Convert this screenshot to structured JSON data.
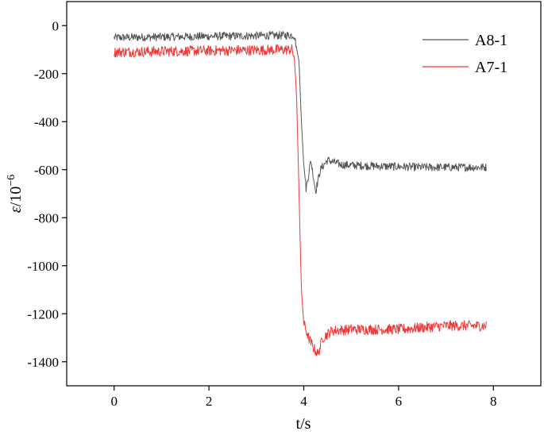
{
  "chart_data": {
    "type": "line",
    "xlabel": "t/s",
    "ylabel_main": "ε",
    "ylabel_sep": "/10",
    "ylabel_exp": "−6",
    "xlim": [
      -1.0,
      9.0
    ],
    "ylim": [
      -1500,
      100
    ],
    "xticks": [
      0,
      2,
      4,
      6,
      8
    ],
    "yticks": [
      0,
      -200,
      -400,
      -600,
      -800,
      -1000,
      -1200,
      -1400
    ],
    "grid": false,
    "legend_position": "top-right",
    "series": [
      {
        "name": "A8-1",
        "color": "#555555",
        "noise": 17,
        "points": [
          [
            0,
            -50
          ],
          [
            3.8,
            -40
          ],
          [
            3.9,
            -150
          ],
          [
            3.95,
            -400
          ],
          [
            4.0,
            -580
          ],
          [
            4.05,
            -680
          ],
          [
            4.1,
            -620
          ],
          [
            4.15,
            -560
          ],
          [
            4.25,
            -690
          ],
          [
            4.35,
            -600
          ],
          [
            4.5,
            -560
          ],
          [
            4.8,
            -580
          ],
          [
            5.5,
            -585
          ],
          [
            6.5,
            -590
          ],
          [
            7.85,
            -590
          ]
        ]
      },
      {
        "name": "A7-1",
        "color": "#f03838",
        "noise": 22,
        "points": [
          [
            0,
            -110
          ],
          [
            3.75,
            -100
          ],
          [
            3.8,
            -130
          ],
          [
            3.85,
            -300
          ],
          [
            3.9,
            -700
          ],
          [
            3.95,
            -1100
          ],
          [
            4.0,
            -1240
          ],
          [
            4.1,
            -1300
          ],
          [
            4.2,
            -1340
          ],
          [
            4.3,
            -1370
          ],
          [
            4.4,
            -1300
          ],
          [
            4.6,
            -1270
          ],
          [
            5.0,
            -1265
          ],
          [
            6.0,
            -1265
          ],
          [
            7.0,
            -1250
          ],
          [
            7.85,
            -1250
          ]
        ]
      }
    ]
  }
}
